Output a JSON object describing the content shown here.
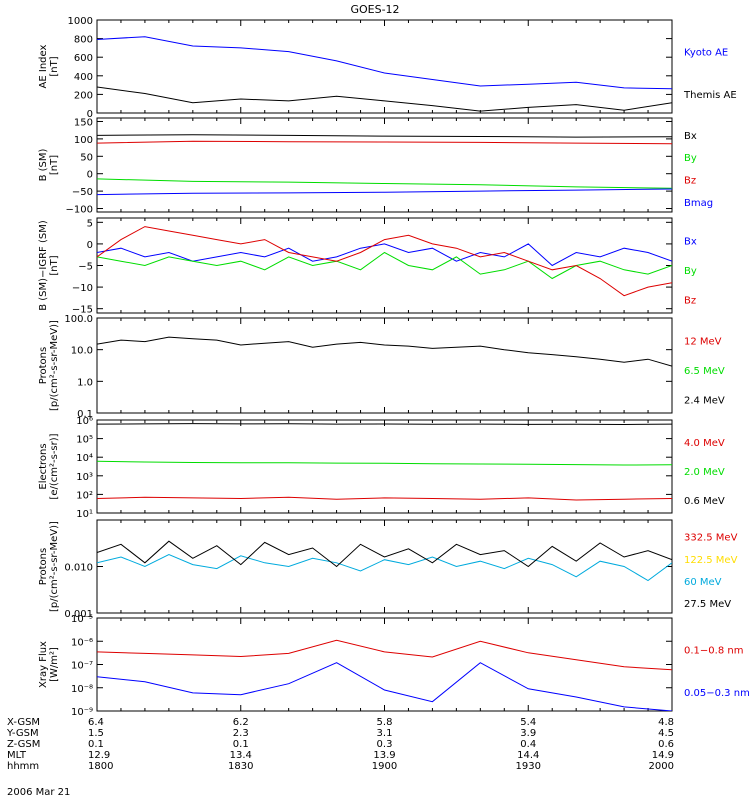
{
  "title": "GOES-12",
  "date_label": "2006 Mar 21",
  "colors": {
    "black": "#000000",
    "blue": "#0000ff",
    "red": "#dd0000",
    "green": "#00dd00",
    "yellow": "#ffdd00",
    "cyan": "#00aadd"
  },
  "ephemeris": {
    "rows": [
      {
        "label": "X-GSM",
        "values": [
          "6.4",
          "6.2",
          "5.8",
          "5.4",
          "4.8"
        ]
      },
      {
        "label": "Y-GSM",
        "values": [
          "1.5",
          "2.3",
          "3.1",
          "3.9",
          "4.5"
        ]
      },
      {
        "label": "Z-GSM",
        "values": [
          "0.1",
          "0.1",
          "0.3",
          "0.4",
          "0.6"
        ]
      },
      {
        "label": "MLT",
        "values": [
          "12.9",
          "13.4",
          "13.9",
          "14.4",
          "14.9"
        ]
      },
      {
        "label": "hhmm",
        "values": [
          "1800",
          "1830",
          "1900",
          "1930",
          "2000"
        ]
      }
    ]
  },
  "chart_data": [
    {
      "type": "line",
      "ylabel": [
        "AE Index",
        "[nT]"
      ],
      "yscale": "linear",
      "ylim": [
        0,
        1000
      ],
      "yticks": [
        0,
        200,
        400,
        600,
        800,
        1000
      ],
      "yticklabels": [
        "0",
        "200",
        "400",
        "600",
        "800",
        "1000"
      ],
      "x": [
        0,
        10,
        20,
        30,
        40,
        50,
        60,
        70,
        80,
        90,
        100,
        110,
        120
      ],
      "series": [
        {
          "name": "Kyoto AE",
          "color": "blue",
          "values": [
            790,
            820,
            720,
            700,
            660,
            560,
            430,
            360,
            290,
            310,
            330,
            270,
            260
          ]
        },
        {
          "name": "Themis AE",
          "color": "black",
          "values": [
            280,
            210,
            110,
            150,
            130,
            180,
            130,
            80,
            20,
            60,
            90,
            30,
            110
          ]
        }
      ]
    },
    {
      "type": "line",
      "ylabel": [
        "B (SM)",
        "[nT]"
      ],
      "yscale": "linear",
      "ylim": [
        -110,
        160
      ],
      "yticks": [
        -100,
        -50,
        0,
        50,
        100,
        150
      ],
      "yticklabels": [
        "−100",
        "−50",
        "0",
        "50",
        "100",
        "150"
      ],
      "x": [
        0,
        20,
        40,
        60,
        80,
        100,
        120
      ],
      "series": [
        {
          "name": "Bx",
          "color": "black",
          "values": [
            110,
            112,
            110,
            108,
            107,
            105,
            106
          ]
        },
        {
          "name": "By",
          "color": "green",
          "values": [
            -15,
            -22,
            -24,
            -28,
            -32,
            -38,
            -42
          ]
        },
        {
          "name": "Bz",
          "color": "red",
          "values": [
            88,
            93,
            92,
            91,
            90,
            88,
            86
          ]
        },
        {
          "name": "Bmag",
          "color": "blue",
          "values": [
            -60,
            -56,
            -55,
            -53,
            -50,
            -47,
            -44
          ]
        }
      ]
    },
    {
      "type": "line",
      "ylabel": [
        "B (SM)−IGRF (SM)",
        "[nT]"
      ],
      "yscale": "linear",
      "ylim": [
        -16,
        6
      ],
      "yticks": [
        -15,
        -10,
        -5,
        0,
        5
      ],
      "yticklabels": [
        "−15",
        "−10",
        "−5",
        "0",
        "5"
      ],
      "x": [
        0,
        5,
        10,
        15,
        20,
        25,
        30,
        35,
        40,
        45,
        50,
        55,
        60,
        65,
        70,
        75,
        80,
        85,
        90,
        95,
        100,
        105,
        110,
        115,
        120
      ],
      "series": [
        {
          "name": "Bx",
          "color": "blue",
          "values": [
            -2,
            -1,
            -3,
            -2,
            -4,
            -3,
            -2,
            -3,
            -1,
            -4,
            -3,
            -1,
            0,
            -2,
            -1,
            -4,
            -2,
            -3,
            0,
            -5,
            -2,
            -3,
            -1,
            -2,
            -4
          ]
        },
        {
          "name": "By",
          "color": "green",
          "values": [
            -3,
            -4,
            -5,
            -3,
            -4,
            -5,
            -4,
            -6,
            -3,
            -5,
            -4,
            -6,
            -2,
            -5,
            -6,
            -3,
            -7,
            -6,
            -4,
            -8,
            -5,
            -4,
            -6,
            -7,
            -5
          ]
        },
        {
          "name": "Bz",
          "color": "red",
          "values": [
            -3,
            1,
            4,
            3,
            2,
            1,
            0,
            1,
            -2,
            -3,
            -4,
            -2,
            1,
            2,
            0,
            -1,
            -3,
            -2,
            -4,
            -6,
            -5,
            -8,
            -12,
            -10,
            -9
          ]
        }
      ]
    },
    {
      "type": "line",
      "ylabel": [
        "Protons",
        "[p/(cm²-s-sr-MeV)]"
      ],
      "yscale": "log",
      "ylim": [
        0.1,
        100
      ],
      "yticks": [
        0.1,
        1,
        10,
        100
      ],
      "yticklabels": [
        "0.1",
        "1.0",
        "10.0",
        "100.0"
      ],
      "x": [
        0,
        5,
        10,
        15,
        20,
        25,
        30,
        35,
        40,
        45,
        50,
        55,
        60,
        65,
        70,
        75,
        80,
        85,
        90,
        95,
        100,
        105,
        110,
        115,
        120
      ],
      "series": [
        {
          "name": "12 MeV",
          "color": "red",
          "values": [
            null,
            null,
            null,
            null,
            null,
            null,
            null,
            null,
            null,
            null,
            null,
            null,
            null,
            null,
            null,
            null,
            null,
            null,
            null,
            null,
            null,
            null,
            null,
            null,
            null
          ]
        },
        {
          "name": "6.5 MeV",
          "color": "green",
          "values": [
            null,
            null,
            null,
            null,
            null,
            null,
            null,
            null,
            null,
            null,
            null,
            null,
            null,
            null,
            null,
            null,
            null,
            null,
            null,
            null,
            null,
            null,
            null,
            null,
            null
          ]
        },
        {
          "name": "2.4 MeV",
          "color": "black",
          "values": [
            15,
            20,
            18,
            25,
            22,
            20,
            14,
            16,
            18,
            12,
            15,
            17,
            14,
            13,
            11,
            12,
            13,
            10,
            8,
            7,
            6,
            5,
            4,
            5,
            3
          ]
        }
      ]
    },
    {
      "type": "line",
      "ylabel": [
        "Electrons",
        "[e/(cm²-s-sr)]"
      ],
      "yscale": "log",
      "ylim": [
        10,
        1000000
      ],
      "yticks": [
        10,
        100,
        1000,
        10000,
        100000,
        1000000
      ],
      "yticklabels": [
        "10¹",
        "10²",
        "10³",
        "10⁴",
        "10⁵",
        "10⁶"
      ],
      "x": [
        0,
        10,
        20,
        30,
        40,
        50,
        60,
        70,
        80,
        90,
        100,
        110,
        120
      ],
      "series": [
        {
          "name": "4.0 MeV",
          "color": "red",
          "values": [
            60,
            70,
            65,
            60,
            70,
            55,
            65,
            60,
            55,
            65,
            50,
            55,
            60
          ]
        },
        {
          "name": "2.0 MeV",
          "color": "green",
          "values": [
            6000,
            5500,
            5200,
            5000,
            5000,
            4800,
            4700,
            4500,
            4300,
            4200,
            4000,
            3800,
            3900
          ]
        },
        {
          "name": "0.6 MeV",
          "color": "black",
          "values": [
            600000,
            620000,
            640000,
            620000,
            630000,
            600000,
            610000,
            590000,
            600000,
            580000,
            590000,
            570000,
            600000
          ]
        }
      ]
    },
    {
      "type": "line",
      "ylabel": [
        "Protons",
        "[p/(cm²-s-sr-MeV)]"
      ],
      "yscale": "log",
      "ylim": [
        0.001,
        0.1
      ],
      "yticks": [
        0.001,
        0.01
      ],
      "yticklabels": [
        "0.001",
        "0.010"
      ],
      "x": [
        0,
        5,
        10,
        15,
        20,
        25,
        30,
        35,
        40,
        45,
        50,
        55,
        60,
        65,
        70,
        75,
        80,
        85,
        90,
        95,
        100,
        105,
        110,
        115,
        120
      ],
      "series": [
        {
          "name": "332.5 MeV",
          "color": "red",
          "values": [
            null,
            null,
            null,
            null,
            null,
            null,
            null,
            null,
            null,
            null,
            null,
            null,
            null,
            null,
            null,
            null,
            null,
            null,
            null,
            null,
            null,
            null,
            null,
            null,
            null
          ]
        },
        {
          "name": "122.5 MeV",
          "color": "yellow",
          "values": [
            null,
            null,
            null,
            null,
            null,
            null,
            null,
            null,
            null,
            null,
            null,
            null,
            null,
            null,
            null,
            null,
            null,
            null,
            null,
            null,
            null,
            null,
            null,
            null,
            null
          ]
        },
        {
          "name": "60 MeV",
          "color": "cyan",
          "values": [
            0.012,
            0.016,
            0.01,
            0.018,
            0.011,
            0.009,
            0.017,
            0.012,
            0.01,
            0.015,
            0.012,
            0.008,
            0.014,
            0.011,
            0.016,
            0.01,
            0.013,
            0.009,
            0.015,
            0.011,
            0.006,
            0.013,
            0.01,
            0.005,
            0.012
          ]
        },
        {
          "name": "27.5 MeV",
          "color": "black",
          "values": [
            0.02,
            0.03,
            0.012,
            0.035,
            0.015,
            0.028,
            0.011,
            0.033,
            0.018,
            0.025,
            0.01,
            0.03,
            0.016,
            0.024,
            0.012,
            0.03,
            0.018,
            0.022,
            0.01,
            0.027,
            0.013,
            0.032,
            0.016,
            0.022,
            0.014
          ]
        }
      ]
    },
    {
      "type": "line",
      "ylabel": [
        "Xray Flux",
        "[W/m²]"
      ],
      "yscale": "log",
      "ylim": [
        1e-09,
        1e-05
      ],
      "yticks": [
        1e-09,
        1e-08,
        1e-07,
        1e-06,
        1e-05
      ],
      "yticklabels": [
        "10⁻⁹",
        "10⁻⁸",
        "10⁻⁷",
        "10⁻⁶",
        "10⁻⁵"
      ],
      "x": [
        0,
        10,
        20,
        30,
        40,
        50,
        60,
        70,
        80,
        90,
        100,
        110,
        120
      ],
      "series": [
        {
          "name": "0.1−0.8 nm",
          "color": "red",
          "values": [
            3.5e-07,
            3e-07,
            2.6e-07,
            2.2e-07,
            3e-07,
            1.1e-06,
            3.5e-07,
            2.1e-07,
            1e-06,
            3.2e-07,
            1.6e-07,
            8e-08,
            6e-08
          ]
        },
        {
          "name": "0.05−0.3 nm",
          "color": "blue",
          "values": [
            3e-08,
            1.8e-08,
            6e-09,
            5e-09,
            1.5e-08,
            1.2e-07,
            8e-09,
            2.5e-09,
            1.2e-07,
            9e-09,
            4e-09,
            1.5e-09,
            1e-09
          ]
        }
      ]
    }
  ]
}
